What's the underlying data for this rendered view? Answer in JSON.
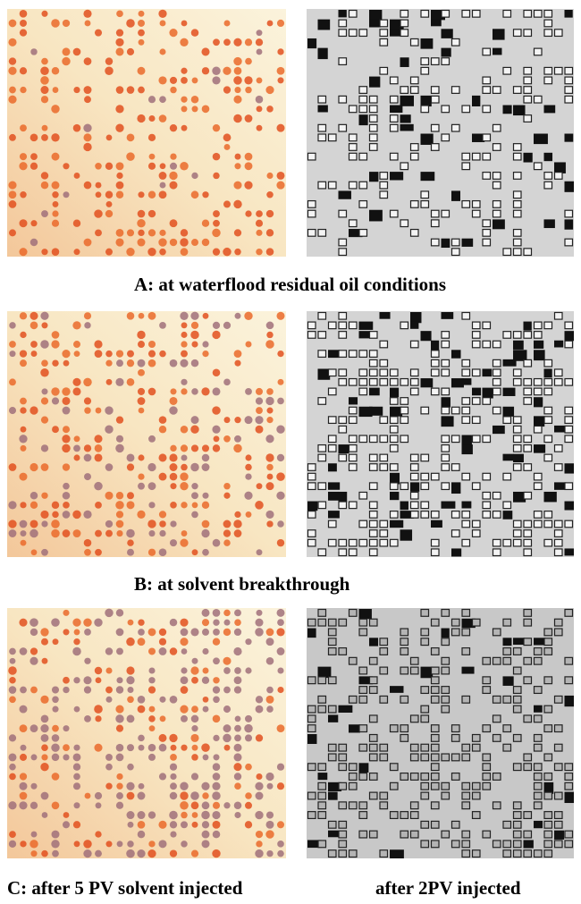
{
  "rows": [
    {
      "caption": "A: at waterflood residual oil conditions"
    },
    {
      "caption": "B: at solvent breakthrough"
    },
    {
      "caption": "C: after 5 PV solvent injected",
      "right_caption": "after 2PV injected"
    }
  ]
}
